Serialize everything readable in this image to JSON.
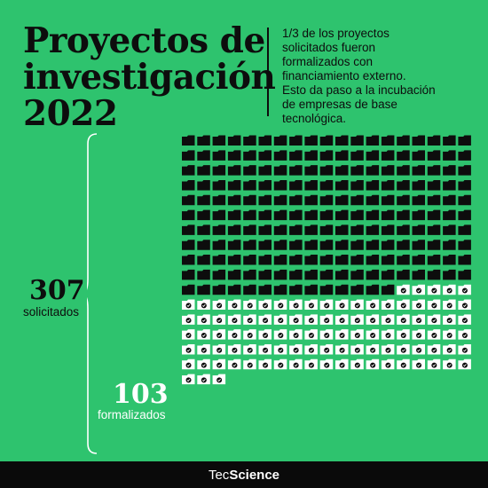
{
  "header": {
    "title_lines": [
      "Proyectos de",
      "investigación",
      "2022"
    ],
    "description_lines": [
      "1/3 de los proyectos",
      "solicitados fueron",
      "formalizados con",
      "financiamiento externo.",
      "Esto da paso a la incubación",
      "de empresas de base",
      "tecnológica."
    ]
  },
  "stats": {
    "solicitados": {
      "value": "307",
      "label": "solicitados"
    },
    "formalizados": {
      "value": "103",
      "label": "formalizados"
    }
  },
  "pictogram": {
    "total": 307,
    "formalizados": 103,
    "columns": 19,
    "icon": "folder-icon",
    "check_icon": "check-icon"
  },
  "footer": {
    "brand_light": "Tec",
    "brand_bold": "Science"
  },
  "colors": {
    "background": "#2ec36e",
    "solicitado_folder": "#0d0d0d",
    "formalizado_folder": "#ffffff",
    "footer_bg": "#0a0a0a"
  }
}
